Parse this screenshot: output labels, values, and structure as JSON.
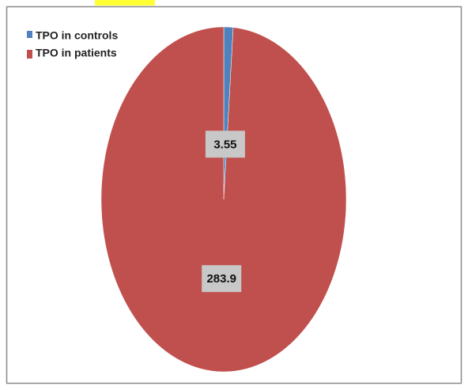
{
  "chart_data": {
    "type": "pie",
    "categories": [
      "TPO in controls",
      "TPO in patients"
    ],
    "values": [
      3.55,
      283.9
    ],
    "colors": [
      "#4f81bd",
      "#c0504d"
    ],
    "legend": "top-left"
  }
}
